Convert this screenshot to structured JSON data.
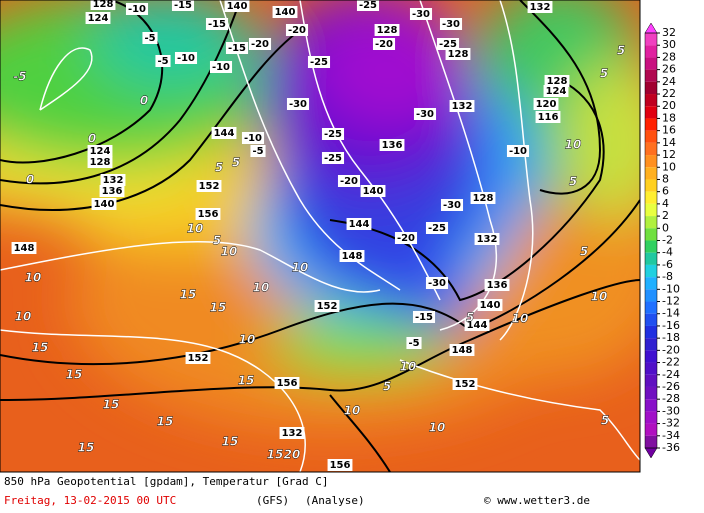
{
  "colorbar": {
    "ticks": [
      32,
      30,
      28,
      26,
      24,
      22,
      20,
      18,
      16,
      14,
      12,
      10,
      8,
      6,
      4,
      2,
      0,
      -2,
      -4,
      -6,
      -8,
      -10,
      -12,
      -14,
      -16,
      -18,
      -20,
      -22,
      -24,
      -26,
      -28,
      -30,
      -32,
      -34,
      -36
    ],
    "colors": [
      "#f040c0",
      "#e020a0",
      "#c81080",
      "#b00850",
      "#a00030",
      "#c00020",
      "#e00010",
      "#ff2000",
      "#ff5010",
      "#ff7020",
      "#ff9020",
      "#ffb020",
      "#ffd020",
      "#ffee30",
      "#e8ff40",
      "#b0f040",
      "#70e040",
      "#30d060",
      "#20c8a0",
      "#20d0e0",
      "#20b0ff",
      "#2090ff",
      "#2070ff",
      "#2050f0",
      "#2030e0",
      "#3020d0",
      "#4010d0",
      "#5010c8",
      "#6010c0",
      "#7010c0",
      "#8810c8",
      "#a010c8",
      "#b010c0",
      "#8010a0"
    ],
    "over_color": "#ff40ff",
    "under_color": "#7000a0"
  },
  "labels": {
    "boxed": [
      "124",
      "128",
      "-10",
      "-15",
      "140",
      "140",
      "-20",
      "-25",
      "-30",
      "-30",
      "132",
      "-25",
      "-20",
      "128",
      "-25",
      "-30",
      "-25",
      "-25",
      "-20",
      "140",
      "144",
      "-20",
      "-25",
      "-30",
      "136",
      "132",
      "-30",
      "132",
      "128",
      "-30",
      "148",
      "152",
      "144",
      "140",
      "136",
      "-10",
      "152",
      "156",
      "148",
      "152",
      "156",
      "132",
      "152",
      "156",
      "148",
      "-15",
      "-5",
      "-20",
      "-15",
      "-10",
      "144",
      "-10",
      "-5",
      "124",
      "128",
      "136",
      "140",
      "132",
      "128",
      "124",
      "120",
      "116",
      "128",
      "-5",
      "-5",
      "-10",
      "-15"
    ],
    "plain": [
      "0",
      "0",
      "0",
      "-5",
      "5",
      "5",
      "10",
      "5",
      "5",
      "10",
      "10",
      "5",
      "10",
      "10",
      "15",
      "15",
      "15",
      "15",
      "15",
      "15",
      "20",
      "10",
      "10",
      "5",
      "15",
      "15",
      "10",
      "10",
      "10",
      "10",
      "5",
      "5",
      "5",
      "10",
      "15",
      "10",
      "5",
      "15"
    ]
  },
  "caption": {
    "title": "850 hPa Geopotential [gpdam], Temperatur [Grad C]",
    "date": "Freitag, 13-02-2015  00 UTC",
    "model": "(GFS)",
    "run": "(Analyse)",
    "credit": "© www.wetter3.de"
  }
}
